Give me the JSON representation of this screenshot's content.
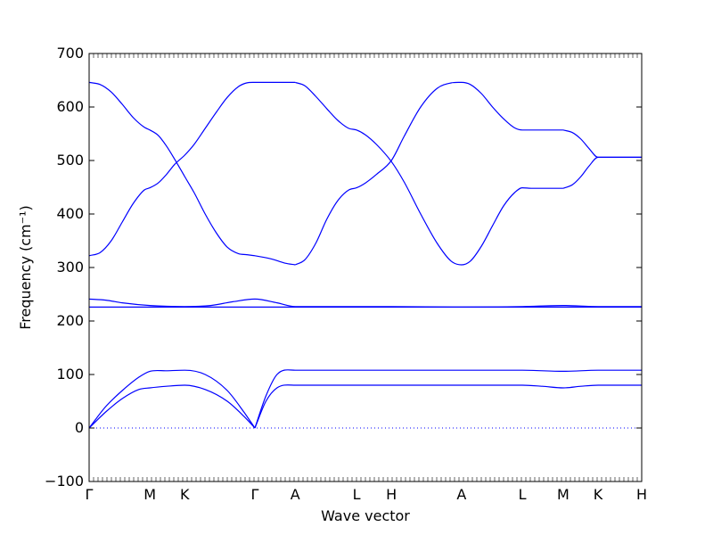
{
  "chart_data": {
    "type": "line",
    "xlabel": "Wave vector",
    "ylabel": "Frequency (cm⁻¹)",
    "ylim": [
      -100,
      700
    ],
    "yticks": [
      -100,
      0,
      100,
      200,
      300,
      400,
      500,
      600,
      700
    ],
    "grid": false,
    "line_color": "#0000ff",
    "zero_line": {
      "value": 0,
      "style": "dotted",
      "color": "#0000ff"
    },
    "xticks": [
      {
        "label": "Γ",
        "x": 0
      },
      {
        "label": "M",
        "x": 0.11
      },
      {
        "label": "K",
        "x": 0.173
      },
      {
        "label": "Γ",
        "x": 0.3
      },
      {
        "label": "A",
        "x": 0.373
      },
      {
        "label": "L",
        "x": 0.484
      },
      {
        "label": "H",
        "x": 0.547
      },
      {
        "label": "A",
        "x": 0.674
      },
      {
        "label": "L",
        "x": 0.784
      },
      {
        "label": "M",
        "x": 0.858
      },
      {
        "label": "K",
        "x": 0.921
      },
      {
        "label": "H",
        "x": 1.0
      }
    ],
    "series": [
      {
        "x": [
          0,
          0.03,
          0.06,
          0.09,
          0.11,
          0.14,
          0.173,
          0.21,
          0.25,
          0.28,
          0.3
        ],
        "values": [
          0,
          40,
          70,
          95,
          106,
          107,
          108,
          100,
          70,
          30,
          0
        ]
      },
      {
        "x": [
          0,
          0.03,
          0.06,
          0.09,
          0.11,
          0.14,
          0.173,
          0.21,
          0.25,
          0.28,
          0.3
        ],
        "values": [
          0,
          30,
          55,
          72,
          75,
          78,
          80,
          72,
          50,
          22,
          0
        ]
      },
      {
        "x": [
          0.3,
          0.32,
          0.34,
          0.373,
          0.484,
          0.547,
          0.674,
          0.784,
          0.858,
          0.921,
          1.0
        ],
        "values": [
          0,
          60,
          100,
          108,
          108,
          108,
          108,
          108,
          106,
          108,
          108
        ]
      },
      {
        "x": [
          0.3,
          0.32,
          0.34,
          0.373,
          0.484,
          0.547,
          0.674,
          0.784,
          0.82,
          0.858,
          0.89,
          0.921,
          1.0
        ],
        "values": [
          0,
          50,
          75,
          80,
          80,
          80,
          80,
          80,
          78,
          75,
          78,
          80,
          80
        ]
      },
      {
        "x": [
          0,
          0.03,
          0.06,
          0.11,
          0.173,
          0.22,
          0.26,
          0.3,
          0.34,
          0.373,
          0.484,
          0.547,
          0.674,
          0.784,
          0.858,
          0.921,
          1.0
        ],
        "values": [
          226,
          226,
          226,
          226,
          226,
          226,
          226,
          226,
          226,
          226,
          226,
          226,
          226,
          226,
          226,
          226,
          226
        ]
      },
      {
        "x": [
          0,
          0.03,
          0.06,
          0.11,
          0.173,
          0.22,
          0.26,
          0.3,
          0.34,
          0.373,
          0.484,
          0.547,
          0.674,
          0.784,
          0.858,
          0.921,
          1.0
        ],
        "values": [
          241,
          239,
          234,
          229,
          227,
          229,
          236,
          241,
          234,
          227,
          227,
          227,
          226,
          227,
          229,
          227,
          227
        ]
      },
      {
        "x": [
          0,
          0.02,
          0.04,
          0.06,
          0.08,
          0.1,
          0.11,
          0.125,
          0.14,
          0.155,
          0.173,
          0.19,
          0.21,
          0.23,
          0.25,
          0.27,
          0.285,
          0.3,
          0.373
        ],
        "values": [
          322,
          328,
          350,
          385,
          420,
          445,
          449,
          458,
          474,
          493,
          510,
          530,
          560,
          590,
          618,
          638,
          645,
          646,
          646
        ]
      },
      {
        "x": [
          0,
          0.02,
          0.04,
          0.06,
          0.08,
          0.1,
          0.11,
          0.125,
          0.14,
          0.155,
          0.173,
          0.19,
          0.21,
          0.23,
          0.25,
          0.27,
          0.285,
          0.3,
          0.33,
          0.355,
          0.373
        ],
        "values": [
          646,
          642,
          628,
          605,
          580,
          562,
          557,
          547,
          527,
          502,
          470,
          440,
          400,
          365,
          338,
          326,
          324,
          322,
          316,
          308,
          305
        ]
      },
      {
        "x": [
          0.373,
          0.39,
          0.41,
          0.43,
          0.45,
          0.47,
          0.484,
          0.5,
          0.52,
          0.547,
          0.57,
          0.6,
          0.63,
          0.655,
          0.674,
          0.69,
          0.71,
          0.73,
          0.75,
          0.77,
          0.784,
          0.8,
          0.858
        ],
        "values": [
          646,
          640,
          620,
          597,
          575,
          560,
          557,
          548,
          530,
          498,
          460,
          400,
          345,
          312,
          305,
          312,
          340,
          378,
          415,
          440,
          449,
          448,
          448
        ]
      },
      {
        "x": [
          0.373,
          0.39,
          0.41,
          0.43,
          0.45,
          0.47,
          0.484,
          0.5,
          0.52,
          0.547,
          0.57,
          0.6,
          0.63,
          0.655,
          0.674,
          0.69,
          0.71,
          0.73,
          0.75,
          0.77,
          0.784,
          0.8,
          0.858
        ],
        "values": [
          305,
          314,
          345,
          390,
          425,
          445,
          449,
          458,
          474,
          500,
          545,
          600,
          635,
          645,
          646,
          642,
          625,
          600,
          578,
          561,
          557,
          557,
          557
        ]
      },
      {
        "x": [
          0.858,
          0.875,
          0.89,
          0.905,
          0.921,
          1.0
        ],
        "values": [
          448,
          455,
          470,
          490,
          506,
          506
        ]
      },
      {
        "x": [
          0.858,
          0.875,
          0.89,
          0.905,
          0.921,
          1.0
        ],
        "values": [
          557,
          552,
          540,
          522,
          506,
          506
        ]
      }
    ]
  }
}
